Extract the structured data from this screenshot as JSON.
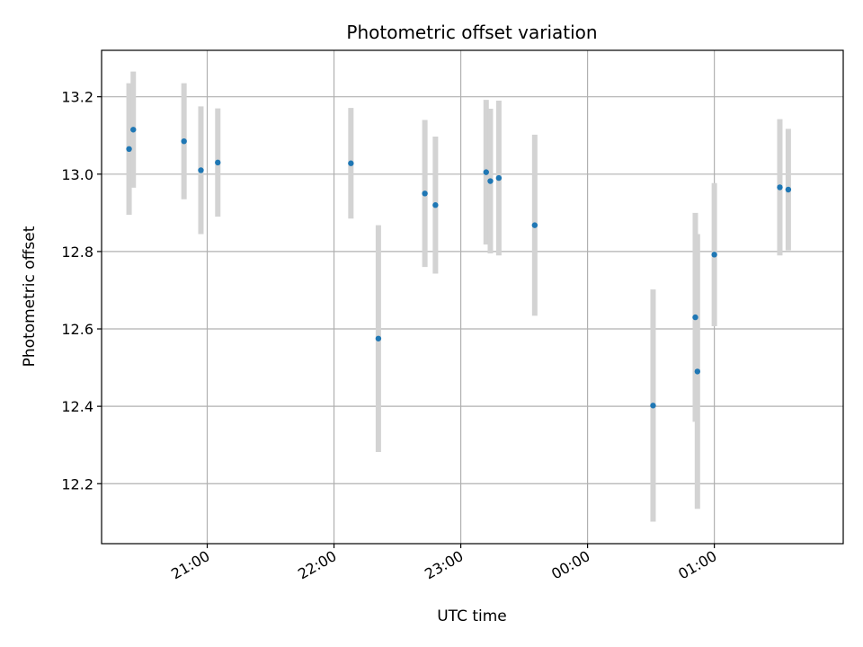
{
  "chart_data": {
    "type": "scatter",
    "title": "Photometric offset variation",
    "xlabel": "UTC time",
    "ylabel": "Photometric offset",
    "grid": true,
    "legend": "none",
    "colors": {
      "point": "#1f77b4",
      "errorbar": "#d3d3d3",
      "grid": "#b0b0b0"
    },
    "xlim": [
      "20:10",
      "02:01"
    ],
    "ylim": [
      12.045,
      13.32
    ],
    "x_ticks": [
      "21:00",
      "22:00",
      "23:00",
      "00:00",
      "01:00"
    ],
    "y_ticks": [
      "12.2",
      "12.4",
      "12.6",
      "12.8",
      "13.0",
      "13.2"
    ],
    "series": [
      {
        "points": [
          {
            "x": "20:23",
            "y": 13.065,
            "err": 0.17
          },
          {
            "x": "20:25",
            "y": 13.115,
            "err": 0.15
          },
          {
            "x": "20:49",
            "y": 13.085,
            "err": 0.15
          },
          {
            "x": "20:57",
            "y": 13.01,
            "err": 0.165
          },
          {
            "x": "21:05",
            "y": 13.03,
            "err": 0.14
          },
          {
            "x": "22:08",
            "y": 13.028,
            "err": 0.143
          },
          {
            "x": "22:21",
            "y": 12.575,
            "err": 0.293
          },
          {
            "x": "22:43",
            "y": 12.95,
            "err": 0.19
          },
          {
            "x": "22:48",
            "y": 12.92,
            "err": 0.177
          },
          {
            "x": "23:12",
            "y": 13.005,
            "err": 0.187
          },
          {
            "x": "23:14",
            "y": 12.982,
            "err": 0.187
          },
          {
            "x": "23:18",
            "y": 12.99,
            "err": 0.2
          },
          {
            "x": "23:35",
            "y": 12.868,
            "err": 0.234
          },
          {
            "x": "00:31",
            "y": 12.402,
            "err": 0.3
          },
          {
            "x": "00:51",
            "y": 12.63,
            "err": 0.27
          },
          {
            "x": "00:52",
            "y": 12.49,
            "err": 0.355
          },
          {
            "x": "01:00",
            "y": 12.792,
            "err": 0.185
          },
          {
            "x": "01:31",
            "y": 12.966,
            "err": 0.176
          },
          {
            "x": "01:35",
            "y": 12.96,
            "err": 0.157
          }
        ]
      }
    ]
  }
}
